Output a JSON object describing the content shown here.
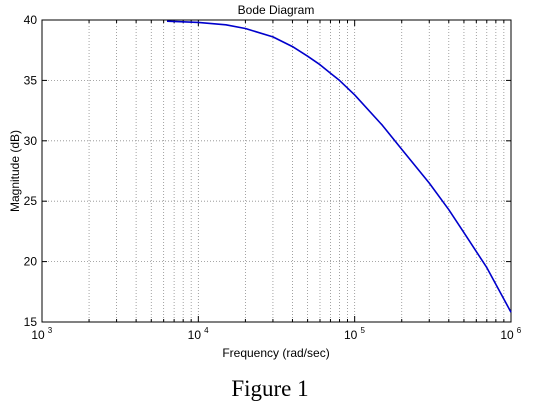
{
  "figure": {
    "caption": "Figure 1"
  },
  "chart_data": {
    "type": "line",
    "title": "Bode Diagram",
    "xlabel": "Frequency  (rad/sec)",
    "ylabel": "Magnitude (dB)",
    "xscale": "log",
    "xlim": [
      1000,
      1000000
    ],
    "ylim": [
      15,
      40
    ],
    "xticks": [
      {
        "value": 1000,
        "base": "10",
        "exp": "3"
      },
      {
        "value": 10000,
        "base": "10",
        "exp": "4"
      },
      {
        "value": 100000,
        "base": "10",
        "exp": "5"
      },
      {
        "value": 1000000,
        "base": "10",
        "exp": "6"
      }
    ],
    "yticks": [
      15,
      20,
      25,
      30,
      35,
      40
    ],
    "grid": true,
    "line_color": "#0000cc",
    "series": [
      {
        "x": [
          6300,
          10000,
          15000,
          20000,
          30000,
          40000,
          50000,
          60000,
          70000,
          80000,
          100000,
          150000,
          200000,
          300000,
          400000,
          500000,
          700000,
          1000000
        ],
        "y": [
          39.9,
          39.8,
          39.6,
          39.3,
          38.6,
          37.8,
          37.0,
          36.3,
          35.6,
          35.0,
          33.8,
          31.3,
          29.3,
          26.5,
          24.3,
          22.4,
          19.5,
          15.8
        ]
      }
    ]
  }
}
